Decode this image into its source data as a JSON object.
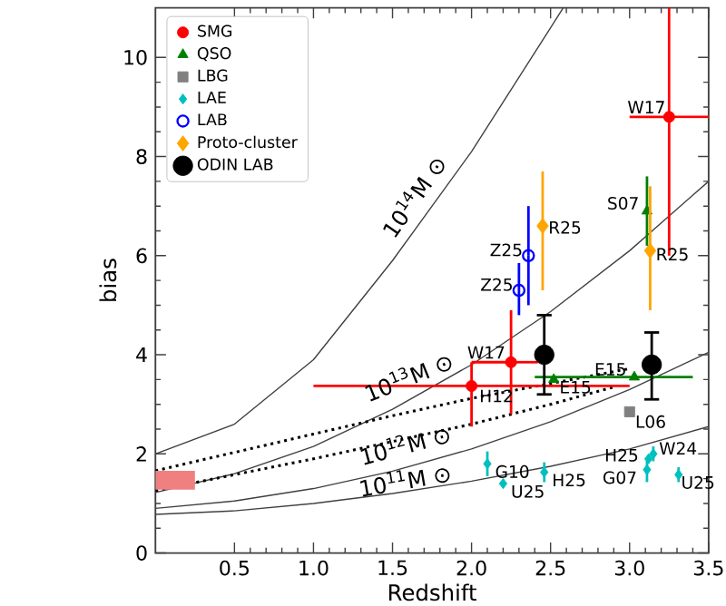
{
  "chart_data": {
    "type": "scatter",
    "xlabel": "Redshift",
    "ylabel": "bias",
    "xlim": [
      0,
      3.5
    ],
    "ylim": [
      0,
      11
    ],
    "xticks": [
      0.5,
      {
        "value": 1,
        "label": "1.0"
      },
      1.5,
      {
        "value": 2,
        "label": "2.0"
      },
      2.5,
      {
        "value": 3,
        "label": "3.0"
      },
      3.5
    ],
    "yticks": [
      0,
      2,
      4,
      6,
      8,
      10
    ],
    "legend": "top left",
    "series": [
      {
        "name": "SMG",
        "marker": "circle",
        "color": "#ff0000",
        "x": [
          3.25,
          2.25,
          2.0
        ],
        "values": [
          8.8,
          3.85,
          3.37
        ],
        "errors": [
          [
            6.0,
            11
          ],
          [
            2.8,
            4.9
          ],
          [
            2.55,
            3.85
          ]
        ],
        "xerrors": [
          [
            3.0,
            3.5
          ],
          [
            2.0,
            2.42
          ],
          [
            1.0,
            3.0
          ]
        ]
      },
      {
        "name": "QSO",
        "marker": "triangle",
        "color": "#008000",
        "x": [
          3.11,
          2.52,
          3.03
        ],
        "values": [
          6.9,
          3.5,
          3.55
        ],
        "errors": [
          [
            6.2,
            7.6
          ],
          null,
          null
        ],
        "xerrors": [
          null,
          null,
          [
            2.4,
            3.4
          ]
        ]
      },
      {
        "name": "LBG",
        "marker": "square",
        "color": "#808080",
        "x": [
          3.0
        ],
        "values": [
          2.85
        ]
      },
      {
        "name": "LAE",
        "marker": "diamond",
        "color": "#00bfbf",
        "x": [
          2.1,
          2.2,
          2.46,
          3.11,
          3.12,
          3.15,
          3.31
        ],
        "values": [
          1.8,
          1.4,
          1.63,
          1.68,
          1.9,
          2.0,
          1.58
        ],
        "errors": [
          0.25,
          null,
          0.2,
          0.25,
          null,
          0.15,
          0.15
        ]
      },
      {
        "name": "LAB",
        "marker": "circle",
        "color": "#0000ff",
        "x": [
          2.36,
          2.3
        ],
        "values": [
          6.0,
          5.3
        ],
        "errors": [
          [
            5.0,
            7.0
          ],
          [
            4.8,
            5.85
          ]
        ]
      },
      {
        "name": "Proto-cluster",
        "marker": "diamond",
        "color": "#ffa500",
        "x": [
          2.45,
          3.13
        ],
        "values": [
          6.6,
          6.1
        ],
        "errors": [
          [
            5.3,
            7.7
          ],
          [
            4.9,
            7.4
          ]
        ]
      },
      {
        "name": "ODIN LAB",
        "marker": "circle",
        "color": "#000000",
        "x": [
          2.46,
          3.14
        ],
        "values": [
          4.0,
          3.8
        ],
        "errors": [
          [
            3.2,
            4.8
          ],
          [
            3.1,
            4.45
          ]
        ]
      },
      {
        "type": "line",
        "line_style": "solid",
        "color": "#404040",
        "x": [
          0,
          0.5,
          1.0,
          1.5,
          2.0,
          2.5,
          2.58
        ],
        "values": [
          2.0,
          2.6,
          3.9,
          5.9,
          8.1,
          10.6,
          11
        ]
      },
      {
        "type": "line",
        "line_style": "solid",
        "color": "#404040",
        "x": [
          0,
          0.5,
          1.0,
          1.5,
          2.0,
          2.5,
          3.0,
          3.5
        ],
        "values": [
          1.22,
          1.6,
          2.15,
          2.9,
          3.8,
          4.87,
          6.1,
          7.5
        ]
      },
      {
        "type": "line",
        "line_style": "solid",
        "color": "#404040",
        "x": [
          0,
          0.5,
          1.0,
          1.5,
          2.0,
          2.5,
          3.0,
          3.5
        ],
        "values": [
          0.9,
          1.05,
          1.3,
          1.65,
          2.1,
          2.65,
          3.3,
          4.05
        ]
      },
      {
        "type": "line",
        "line_style": "solid",
        "color": "#404040",
        "x": [
          0,
          0.5,
          1.0,
          1.5,
          2.0,
          2.5,
          3.0,
          3.5
        ],
        "values": [
          0.78,
          0.85,
          1.0,
          1.2,
          1.45,
          1.75,
          2.1,
          2.55
        ]
      },
      {
        "type": "line",
        "line_style": "dotted",
        "color": "#000000",
        "x": [
          0,
          0.5,
          1.0,
          1.5,
          2.0,
          2.5,
          3.0
        ],
        "values": [
          1.66,
          2.03,
          2.4,
          2.77,
          3.12,
          3.42,
          3.72
        ]
      },
      {
        "type": "line",
        "line_style": "dotted",
        "color": "#000000",
        "x": [
          0,
          0.5,
          1.0,
          1.5,
          2.0,
          2.5,
          2.9
        ],
        "values": [
          1.26,
          1.58,
          1.9,
          2.25,
          2.6,
          3.0,
          3.35
        ]
      },
      {
        "type": "bar",
        "color": "#f08080",
        "x": [
          0.125
        ],
        "base": [
          1.28
        ],
        "values": [
          0.38
        ]
      }
    ],
    "annotations": [
      "10$^{14}$M ⊙",
      "10$^{13}$M ⊙",
      "10$^{12}$M ⊙",
      "10$^{11}$M ⊙",
      {
        "text": "W17",
        "x": 3.25,
        "y": 8.8
      },
      {
        "text": "W17",
        "x": 2.25,
        "y": 3.85
      },
      {
        "text": "H12",
        "x": 2.0,
        "y": 3.37
      },
      {
        "text": "S07",
        "x": 3.11,
        "y": 6.9
      },
      {
        "text": "E15",
        "x": 2.52,
        "y": 3.5
      },
      {
        "text": "E15",
        "x": 3.03,
        "y": 3.55
      },
      {
        "text": "L06",
        "x": 3.0,
        "y": 2.85
      },
      {
        "text": "G10",
        "x": 2.1,
        "y": 1.8
      },
      {
        "text": "U25",
        "x": 2.2,
        "y": 1.4
      },
      {
        "text": "H25",
        "x": 2.46,
        "y": 1.63
      },
      {
        "text": "G07",
        "x": 3.11,
        "y": 1.68
      },
      {
        "text": "H25",
        "x": 3.12,
        "y": 1.9
      },
      {
        "text": "W24",
        "x": 3.15,
        "y": 2.0
      },
      {
        "text": "U25",
        "x": 3.31,
        "y": 1.58
      },
      {
        "text": "Z25",
        "x": 2.36,
        "y": 6.0
      },
      {
        "text": "Z25",
        "x": 2.3,
        "y": 5.3
      },
      {
        "text": "R25",
        "x": 2.45,
        "y": 6.6
      },
      {
        "text": "R25",
        "x": 3.13,
        "y": 6.1
      }
    ]
  }
}
